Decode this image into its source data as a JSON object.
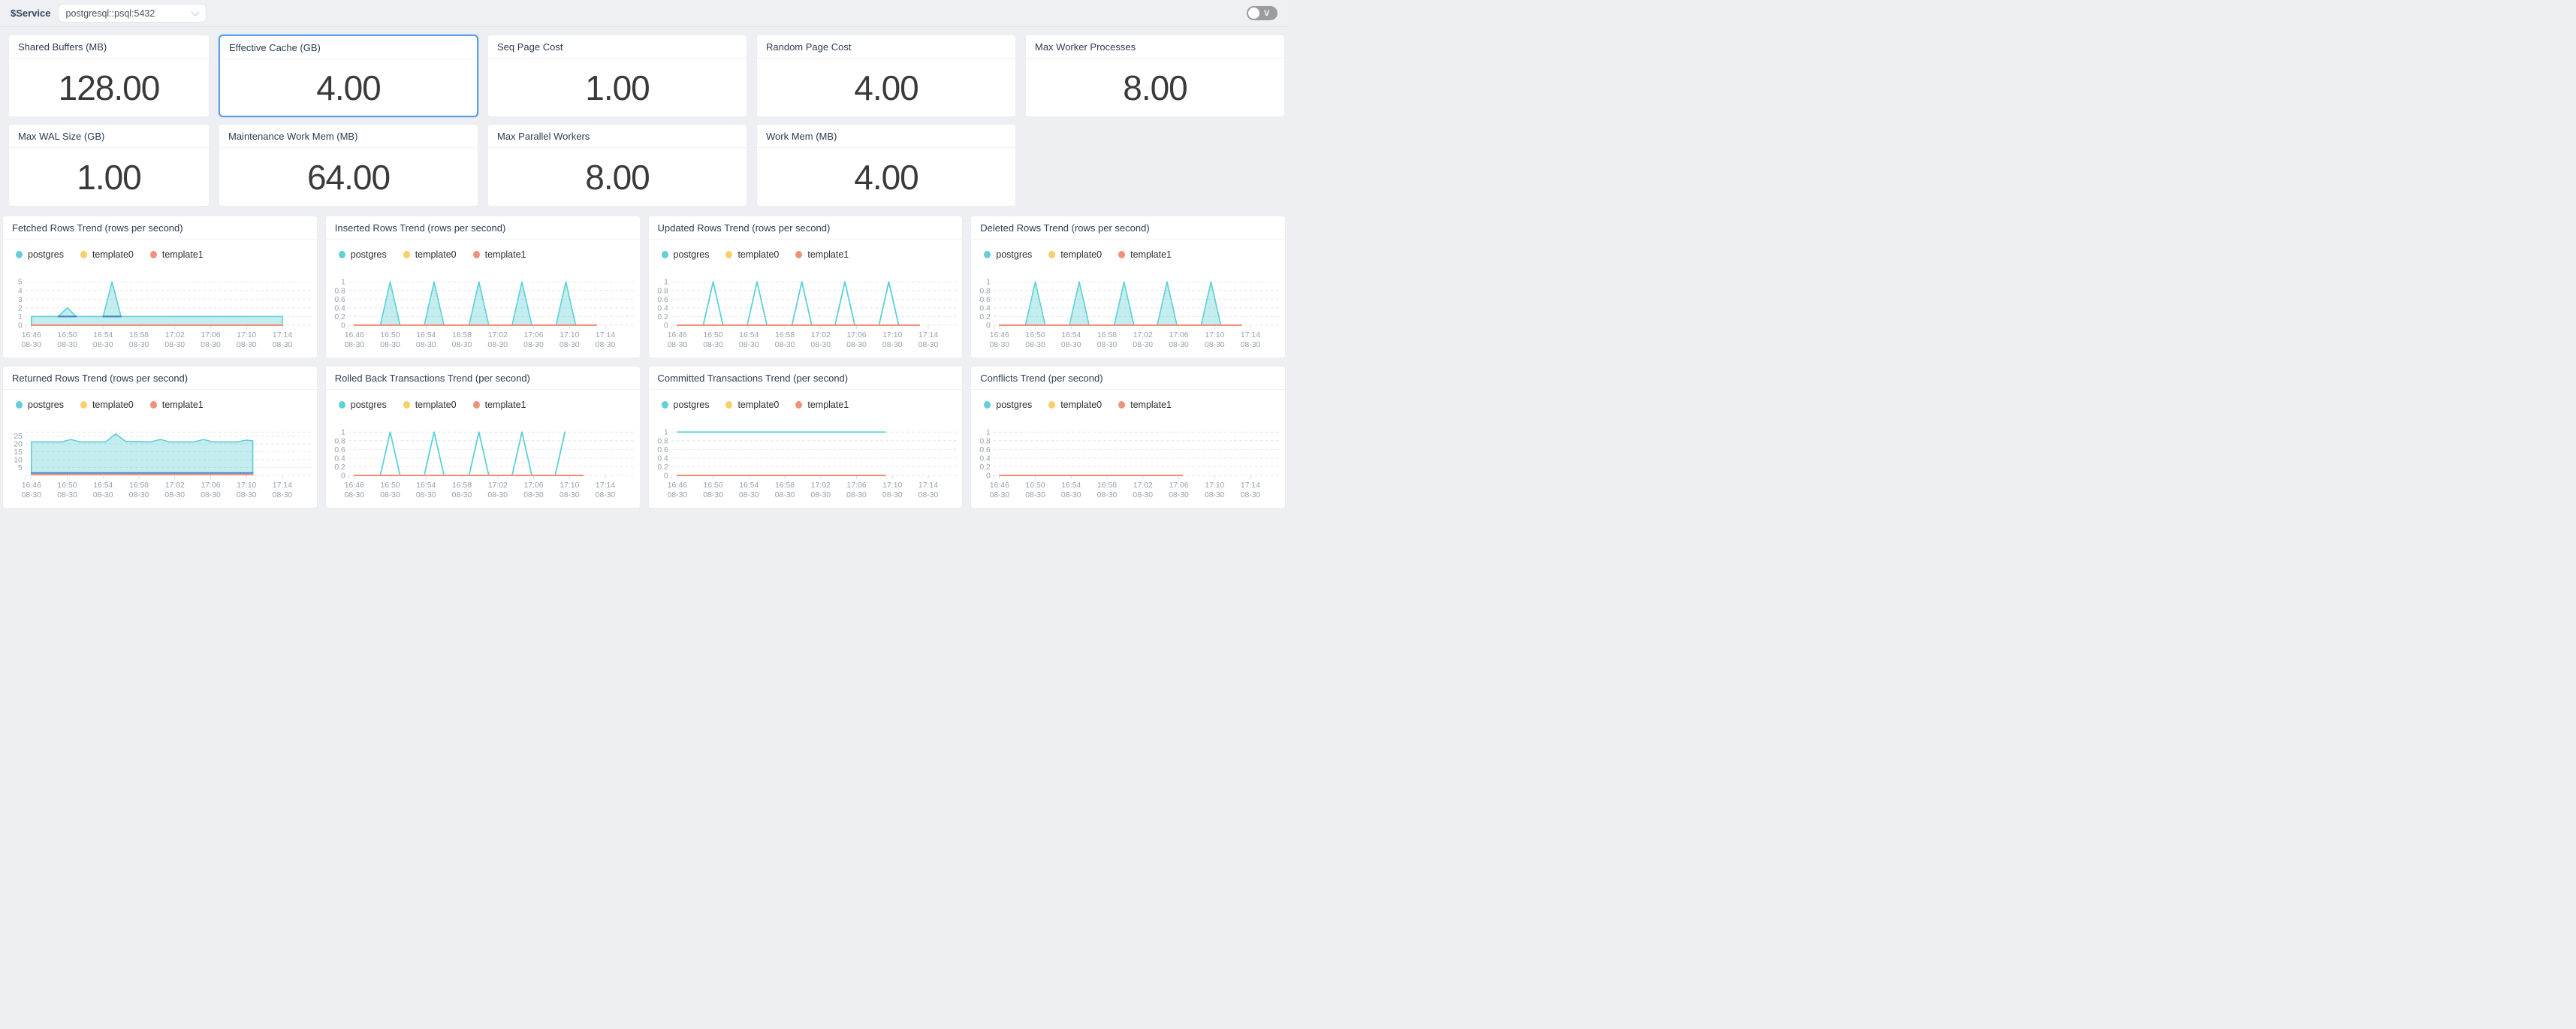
{
  "topbar": {
    "service_label": "$Service",
    "service_value": "postgresql::psql:5432",
    "toggle_label": "V"
  },
  "colors": {
    "teal": "#5bd1d7",
    "teal_fill": "rgba(98,208,214,0.38)",
    "yellow": "#f7cf6b",
    "orange": "#f0917c",
    "accent_blue": "#3f83c6",
    "grid": "#e3e6ec",
    "axis_text": "#98a1ad",
    "selected_border": "#5b9dea"
  },
  "stats": {
    "rows": [
      [
        {
          "title": "Shared Buffers (MB)",
          "value": "128.00",
          "selected": false
        },
        {
          "title": "Effective Cache (GB)",
          "value": "4.00",
          "selected": true
        },
        {
          "title": "Seq Page Cost",
          "value": "1.00",
          "selected": false
        },
        {
          "title": "Random Page Cost",
          "value": "4.00",
          "selected": false
        },
        {
          "title": "Max Worker Processes",
          "value": "8.00",
          "selected": false
        }
      ],
      [
        {
          "title": "Max WAL Size (GB)",
          "value": "1.00",
          "selected": false
        },
        {
          "title": "Maintenance Work Mem (MB)",
          "value": "64.00",
          "selected": false
        },
        {
          "title": "Max Parallel Workers",
          "value": "8.00",
          "selected": false
        },
        {
          "title": "Work Mem (MB)",
          "value": "4.00",
          "selected": false
        }
      ]
    ]
  },
  "legend": [
    {
      "label": "postgres",
      "color": "#62d0d6"
    },
    {
      "label": "template0",
      "color": "#f7cf6b"
    },
    {
      "label": "template1",
      "color": "#f0917c"
    }
  ],
  "xticks": {
    "times": [
      "16:46",
      "16:50",
      "16:54",
      "16:58",
      "17:02",
      "17:06",
      "17:10",
      "17:14"
    ],
    "date": "08-30"
  },
  "charts": [
    {
      "id": "fetched",
      "title": "Fetched Rows Trend (rows per second)",
      "type": "area",
      "ymax": 5,
      "gridlines": [
        {
          "v": 5,
          "label": "5"
        },
        {
          "v": 4,
          "label": "4"
        },
        {
          "v": 3,
          "label": "3"
        },
        {
          "v": 2,
          "label": "2"
        },
        {
          "v": 1,
          "label": "1"
        },
        {
          "v": 0,
          "label": "0"
        }
      ],
      "series": [
        {
          "name": "postgres",
          "type": "area",
          "color": "#5bd1d7",
          "base": 0,
          "points": [
            [
              0,
              1
            ],
            [
              28,
              1
            ]
          ]
        },
        {
          "name": "postgres",
          "type": "area",
          "color": "#5bd1d7",
          "base": 1,
          "points": [
            [
              3,
              1
            ],
            [
              4,
              2
            ],
            [
              5,
              1
            ]
          ]
        },
        {
          "name": "postgres",
          "type": "area",
          "color": "#5bd1d7",
          "base": 1,
          "points": [
            [
              8,
              1
            ],
            [
              9,
              5
            ],
            [
              10,
              1
            ]
          ]
        },
        {
          "name": "overlap-accent",
          "type": "line",
          "color": "#3f83c6",
          "width": 2,
          "points": [
            [
              3,
              1
            ],
            [
              5,
              1
            ]
          ]
        },
        {
          "name": "overlap-accent",
          "type": "line",
          "color": "#3f83c6",
          "width": 2,
          "points": [
            [
              8,
              1
            ],
            [
              10,
              1
            ]
          ]
        },
        {
          "name": "template1",
          "type": "line",
          "color": "#f0917c",
          "width": 2.2,
          "points": [
            [
              0,
              0
            ],
            [
              28,
              0
            ]
          ]
        }
      ]
    },
    {
      "id": "inserted",
      "title": "Inserted Rows Trend (rows per second)",
      "type": "area",
      "ymax": 1,
      "gridlines": [
        {
          "v": 1,
          "label": "1"
        },
        {
          "v": 0.8,
          "label": "0.8"
        },
        {
          "v": 0.6,
          "label": "0.6"
        },
        {
          "v": 0.4,
          "label": "0.4"
        },
        {
          "v": 0.2,
          "label": "0.2"
        },
        {
          "v": 0,
          "label": "0"
        }
      ],
      "series": [
        {
          "name": "postgres",
          "type": "area",
          "color": "#5bd1d7",
          "base": 0,
          "points": [
            [
              2.9,
              0
            ],
            [
              4,
              1
            ],
            [
              5.1,
              0
            ]
          ]
        },
        {
          "name": "postgres",
          "type": "area",
          "color": "#5bd1d7",
          "base": 0,
          "points": [
            [
              7.8,
              0
            ],
            [
              8.9,
              1
            ],
            [
              10,
              0
            ]
          ]
        },
        {
          "name": "postgres",
          "type": "area",
          "color": "#5bd1d7",
          "base": 0,
          "points": [
            [
              12.8,
              0
            ],
            [
              13.9,
              1
            ],
            [
              15,
              0
            ]
          ]
        },
        {
          "name": "postgres",
          "type": "area",
          "color": "#5bd1d7",
          "base": 0,
          "points": [
            [
              17.6,
              0
            ],
            [
              18.7,
              1
            ],
            [
              19.8,
              0
            ]
          ]
        },
        {
          "name": "postgres",
          "type": "area",
          "color": "#5bd1d7",
          "base": 0,
          "points": [
            [
              22.5,
              0
            ],
            [
              23.6,
              1
            ],
            [
              24.7,
              0
            ]
          ]
        },
        {
          "name": "template1",
          "type": "line",
          "color": "#f0917c",
          "width": 2.2,
          "points": [
            [
              0,
              0
            ],
            [
              27,
              0
            ]
          ]
        }
      ]
    },
    {
      "id": "updated",
      "title": "Updated Rows Trend (rows per second)",
      "type": "line",
      "ymax": 1,
      "gridlines": [
        {
          "v": 1,
          "label": "1"
        },
        {
          "v": 0.8,
          "label": "0.8"
        },
        {
          "v": 0.6,
          "label": "0.6"
        },
        {
          "v": 0.4,
          "label": "0.4"
        },
        {
          "v": 0.2,
          "label": "0.2"
        },
        {
          "v": 0,
          "label": "0"
        }
      ],
      "series": [
        {
          "name": "postgres",
          "type": "line",
          "color": "#5bd1d7",
          "width": 1.8,
          "points": [
            [
              0,
              0
            ],
            [
              2.9,
              0
            ],
            [
              4,
              1
            ],
            [
              5.1,
              0
            ],
            [
              7.8,
              0
            ],
            [
              8.9,
              1
            ],
            [
              10,
              0
            ],
            [
              12.8,
              0
            ],
            [
              13.9,
              1
            ],
            [
              15,
              0
            ],
            [
              17.6,
              0
            ],
            [
              18.7,
              1
            ],
            [
              19.8,
              0
            ],
            [
              22.5,
              0
            ],
            [
              23.6,
              1
            ],
            [
              24.7,
              0
            ],
            [
              26.5,
              0
            ]
          ]
        },
        {
          "name": "template1",
          "type": "line",
          "color": "#f0917c",
          "width": 2.2,
          "points": [
            [
              0,
              0
            ],
            [
              27,
              0
            ]
          ]
        }
      ]
    },
    {
      "id": "deleted",
      "title": "Deleted Rows Trend (rows per second)",
      "type": "area",
      "ymax": 1,
      "gridlines": [
        {
          "v": 1,
          "label": "1"
        },
        {
          "v": 0.8,
          "label": "0.8"
        },
        {
          "v": 0.6,
          "label": "0.6"
        },
        {
          "v": 0.4,
          "label": "0.4"
        },
        {
          "v": 0.2,
          "label": "0.2"
        },
        {
          "v": 0,
          "label": "0"
        }
      ],
      "series": [
        {
          "name": "postgres",
          "type": "area",
          "color": "#5bd1d7",
          "base": 0,
          "points": [
            [
              2.9,
              0
            ],
            [
              4,
              1
            ],
            [
              5.1,
              0
            ]
          ]
        },
        {
          "name": "postgres",
          "type": "area",
          "color": "#5bd1d7",
          "base": 0,
          "points": [
            [
              7.8,
              0
            ],
            [
              8.9,
              1
            ],
            [
              10,
              0
            ]
          ]
        },
        {
          "name": "postgres",
          "type": "area",
          "color": "#5bd1d7",
          "base": 0,
          "points": [
            [
              12.8,
              0
            ],
            [
              13.9,
              1
            ],
            [
              15,
              0
            ]
          ]
        },
        {
          "name": "postgres",
          "type": "area",
          "color": "#5bd1d7",
          "base": 0,
          "points": [
            [
              17.6,
              0
            ],
            [
              18.7,
              1
            ],
            [
              19.8,
              0
            ]
          ]
        },
        {
          "name": "postgres",
          "type": "area",
          "color": "#5bd1d7",
          "base": 0,
          "points": [
            [
              22.5,
              0
            ],
            [
              23.6,
              1
            ],
            [
              24.7,
              0
            ]
          ]
        },
        {
          "name": "template1",
          "type": "line",
          "color": "#f0917c",
          "width": 2.2,
          "points": [
            [
              0,
              0
            ],
            [
              27,
              0
            ]
          ]
        }
      ]
    },
    {
      "id": "returned",
      "title": "Returned Rows Trend (rows per second)",
      "type": "area",
      "ymax": 27.5,
      "gridlines": [
        {
          "v": 27.5,
          "label": ""
        },
        {
          "v": 25,
          "label": "25"
        },
        {
          "v": 20,
          "label": "20"
        },
        {
          "v": 15,
          "label": "15"
        },
        {
          "v": 10,
          "label": "10"
        },
        {
          "v": 5,
          "label": "5"
        },
        {
          "v": 0,
          "label": ""
        }
      ],
      "series": [
        {
          "name": "postgres",
          "type": "area",
          "color": "#5bd1d7",
          "base": 1.5,
          "points": [
            [
              0,
              21.3
            ],
            [
              3.4,
              21.3
            ],
            [
              4.4,
              22.8
            ],
            [
              5.4,
              21.3
            ],
            [
              8.3,
              21.3
            ],
            [
              9.4,
              26.3
            ],
            [
              10.5,
              21.6
            ],
            [
              13.3,
              21.3
            ],
            [
              14.4,
              22.8
            ],
            [
              15.4,
              21.3
            ],
            [
              18.2,
              21.3
            ],
            [
              19.2,
              22.8
            ],
            [
              20.2,
              21.3
            ],
            [
              23,
              21.3
            ],
            [
              24,
              22.4
            ],
            [
              24.7,
              21.9
            ]
          ]
        },
        {
          "name": "overlap-accent",
          "type": "line",
          "color": "#3f83c6",
          "width": 2,
          "points": [
            [
              0,
              1.5
            ],
            [
              24.7,
              1.5
            ]
          ]
        },
        {
          "name": "template1",
          "type": "line",
          "color": "#f0917c",
          "width": 2,
          "points": [
            [
              0,
              0.55
            ],
            [
              24.7,
              0.55
            ]
          ]
        }
      ]
    },
    {
      "id": "rolledback",
      "title": "Rolled Back Transactions Trend (per second)",
      "type": "line",
      "ymax": 1,
      "gridlines": [
        {
          "v": 1,
          "label": "1"
        },
        {
          "v": 0.8,
          "label": "0.8"
        },
        {
          "v": 0.6,
          "label": "0.6"
        },
        {
          "v": 0.4,
          "label": "0.4"
        },
        {
          "v": 0.2,
          "label": "0.2"
        },
        {
          "v": 0,
          "label": "0"
        }
      ],
      "series": [
        {
          "name": "postgres",
          "type": "line",
          "color": "#5bd1d7",
          "width": 1.8,
          "points": [
            [
              0,
              0
            ],
            [
              2.9,
              0
            ],
            [
              4,
              1
            ],
            [
              5.1,
              0
            ],
            [
              7.8,
              0
            ],
            [
              8.9,
              1
            ],
            [
              10,
              0
            ],
            [
              12.8,
              0
            ],
            [
              13.9,
              1
            ],
            [
              15,
              0
            ],
            [
              17.6,
              0
            ],
            [
              18.7,
              1
            ],
            [
              19.8,
              0
            ],
            [
              22.4,
              0
            ],
            [
              23.5,
              1
            ]
          ]
        },
        {
          "name": "template1",
          "type": "line",
          "color": "#f0917c",
          "width": 2.2,
          "points": [
            [
              0,
              0
            ],
            [
              25.5,
              0
            ]
          ]
        }
      ]
    },
    {
      "id": "committed",
      "title": "Committed Transactions Trend (per second)",
      "type": "line",
      "ymax": 1,
      "gridlines": [
        {
          "v": 1,
          "label": "1"
        },
        {
          "v": 0.8,
          "label": "0.8"
        },
        {
          "v": 0.6,
          "label": "0.6"
        },
        {
          "v": 0.4,
          "label": "0.4"
        },
        {
          "v": 0.2,
          "label": "0.2"
        },
        {
          "v": 0,
          "label": "0"
        }
      ],
      "series": [
        {
          "name": "postgres",
          "type": "line",
          "color": "#5bd1d7",
          "width": 1.8,
          "points": [
            [
              0,
              1
            ],
            [
              23.2,
              1
            ]
          ]
        },
        {
          "name": "template1",
          "type": "line",
          "color": "#f0917c",
          "width": 2.2,
          "points": [
            [
              0,
              0
            ],
            [
              23.2,
              0
            ]
          ]
        }
      ]
    },
    {
      "id": "conflicts",
      "title": "Conflicts Trend (per second)",
      "type": "line",
      "ymax": 1,
      "gridlines": [
        {
          "v": 1,
          "label": "1"
        },
        {
          "v": 0.8,
          "label": "0.8"
        },
        {
          "v": 0.6,
          "label": "0.6"
        },
        {
          "v": 0.4,
          "label": "0.4"
        },
        {
          "v": 0.2,
          "label": "0.2"
        },
        {
          "v": 0,
          "label": "0"
        }
      ],
      "series": [
        {
          "name": "template1",
          "type": "line",
          "color": "#f0917c",
          "width": 2.2,
          "points": [
            [
              0,
              0
            ],
            [
              20.4,
              0
            ]
          ]
        }
      ]
    }
  ]
}
